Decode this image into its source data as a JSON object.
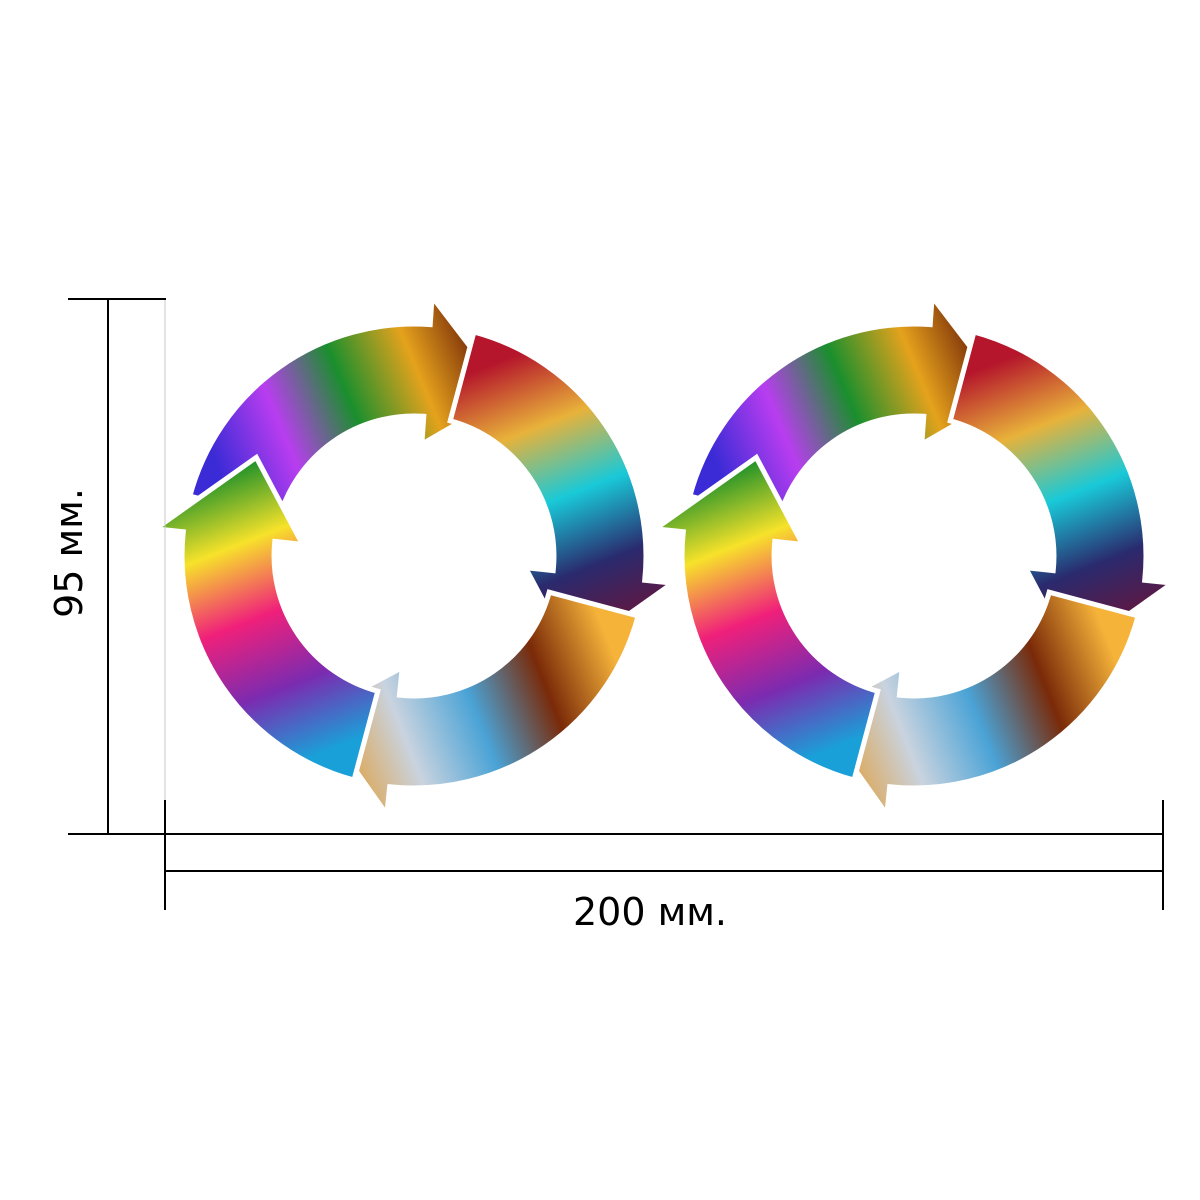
{
  "dimensions": {
    "width_label": "200 мм.",
    "height_label": "95 мм."
  },
  "rings": [
    {
      "name": "left",
      "segments": [
        {
          "name": "arrow-top",
          "colors": [
            "#3a2bd6",
            "#b93df0",
            "#1a8f2d",
            "#e5a21c",
            "#6b1d06"
          ]
        },
        {
          "name": "arrow-right",
          "colors": [
            "#b5162b",
            "#e8b23a",
            "#19c9d8",
            "#2a2a6e",
            "#6a1438"
          ]
        },
        {
          "name": "arrow-bottom",
          "colors": [
            "#f6b33a",
            "#7a2a08",
            "#4aa3d6",
            "#c9d3df",
            "#e0a040"
          ]
        },
        {
          "name": "arrow-left",
          "colors": [
            "#1aa0d8",
            "#7b2bb0",
            "#f0207a",
            "#f7e22a",
            "#1b8f2a"
          ]
        }
      ]
    },
    {
      "name": "right",
      "segments": [
        {
          "name": "arrow-top",
          "colors": [
            "#3a2bd6",
            "#b93df0",
            "#1a8f2d",
            "#e5a21c",
            "#6b1d06"
          ]
        },
        {
          "name": "arrow-right",
          "colors": [
            "#b5162b",
            "#e8b23a",
            "#19c9d8",
            "#2a2a6e",
            "#6a1438"
          ]
        },
        {
          "name": "arrow-bottom",
          "colors": [
            "#f6b33a",
            "#7a2a08",
            "#4aa3d6",
            "#c9d3df",
            "#e0a040"
          ]
        },
        {
          "name": "arrow-left",
          "colors": [
            "#1aa0d8",
            "#7b2bb0",
            "#f0207a",
            "#f7e22a",
            "#1b8f2a"
          ]
        }
      ]
    }
  ]
}
